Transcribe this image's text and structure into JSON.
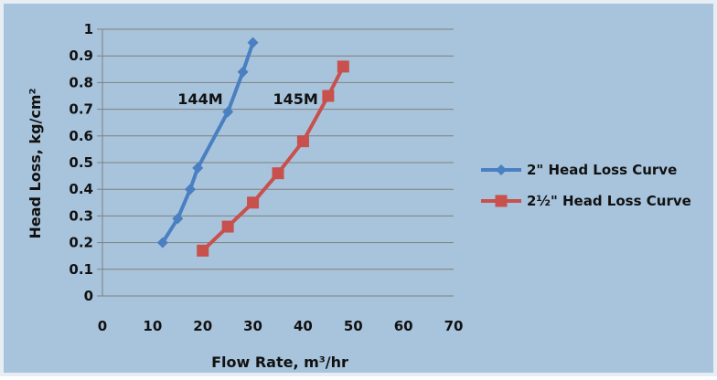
{
  "chart_data": {
    "type": "line",
    "title": "",
    "xlabel": "Flow Rate, m³/hr",
    "ylabel": "Head Loss, kg/cm²",
    "xlim": [
      0,
      70
    ],
    "ylim": [
      0,
      1
    ],
    "xticks": [
      0,
      10,
      20,
      30,
      40,
      50,
      60,
      70
    ],
    "yticks": [
      0,
      0.1,
      0.2,
      0.3,
      0.4,
      0.5,
      0.6,
      0.7,
      0.8,
      0.9,
      1
    ],
    "grid": "horizontal",
    "legend_position": "right",
    "series": [
      {
        "name": "2\" Head Loss Curve",
        "color": "#4a7fc1",
        "marker": "diamond",
        "x": [
          12,
          15,
          17.5,
          19,
          25,
          28,
          30
        ],
        "y": [
          0.2,
          0.29,
          0.4,
          0.48,
          0.69,
          0.84,
          0.95
        ]
      },
      {
        "name": "2½\" Head Loss Curve",
        "color": "#c8504d",
        "marker": "square",
        "x": [
          20,
          25,
          30,
          35,
          40,
          45,
          48
        ],
        "y": [
          0.17,
          0.26,
          0.35,
          0.46,
          0.58,
          0.75,
          0.86
        ]
      }
    ],
    "annotations": [
      {
        "text": "144M",
        "x": 19.5,
        "y": 0.74
      },
      {
        "text": "145M",
        "x": 38.5,
        "y": 0.74
      }
    ]
  }
}
